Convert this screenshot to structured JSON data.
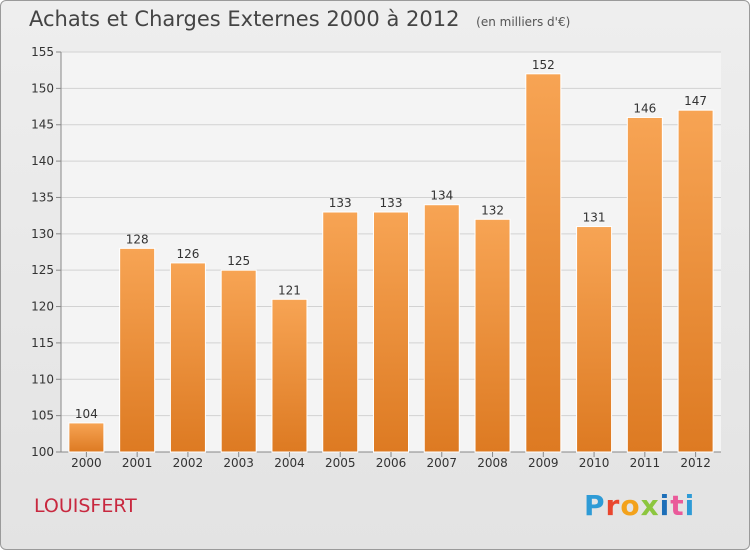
{
  "title": "Achats et Charges Externes 2000 à 2012",
  "unit": "(en milliers d'€)",
  "commune": "LOUISFERT",
  "logo": {
    "chars": [
      "P",
      "r",
      "o",
      "x",
      "i",
      "t",
      "i"
    ]
  },
  "colors": {
    "bar_top": "#f7a454",
    "bar_bottom": "#dd7a22",
    "grid": "#d2d2d2",
    "axis_text": "#333333",
    "commune": "#c8283f"
  },
  "chart_data": {
    "type": "bar",
    "categories": [
      "2000",
      "2001",
      "2002",
      "2003",
      "2004",
      "2005",
      "2006",
      "2007",
      "2008",
      "2009",
      "2010",
      "2011",
      "2012"
    ],
    "values": [
      104,
      128,
      126,
      125,
      121,
      133,
      133,
      134,
      132,
      152,
      131,
      146,
      147
    ],
    "ylim": [
      100,
      155
    ],
    "yticks": [
      100,
      105,
      110,
      115,
      120,
      125,
      130,
      135,
      140,
      145,
      150,
      155
    ],
    "grid": true,
    "data_labels": true
  }
}
